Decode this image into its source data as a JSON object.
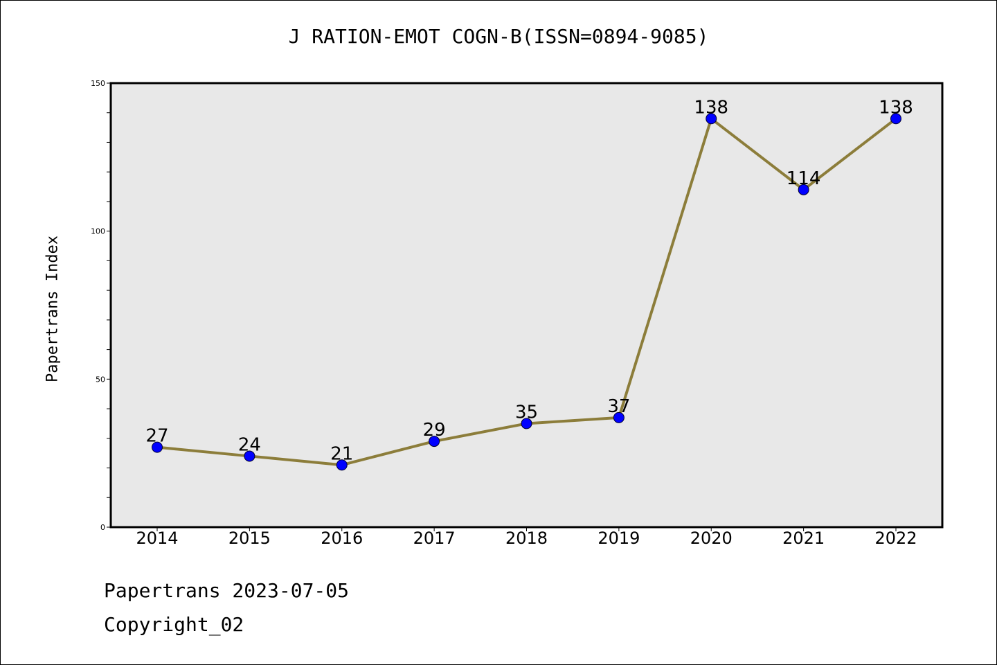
{
  "chart_data": {
    "type": "line",
    "title": "J RATION-EMOT COGN-B(ISSN=0894-9085)",
    "ylabel": "Papertrans Index",
    "xlabel": "",
    "categories": [
      "2014",
      "2015",
      "2016",
      "2017",
      "2018",
      "2019",
      "2020",
      "2021",
      "2022"
    ],
    "series": [
      {
        "values": [
          27,
          24,
          21,
          29,
          35,
          37,
          138,
          114,
          138
        ]
      }
    ],
    "ylim": [
      0,
      150
    ],
    "yticks": [
      0,
      50,
      100,
      150
    ],
    "grid": false,
    "colors": {
      "line": "#8c7d3a",
      "marker": "#0000ff",
      "plot_background": "#e8e8e8"
    }
  },
  "footer": {
    "date_line": "Papertrans 2023-07-05",
    "copyright": "Copyright_02"
  }
}
